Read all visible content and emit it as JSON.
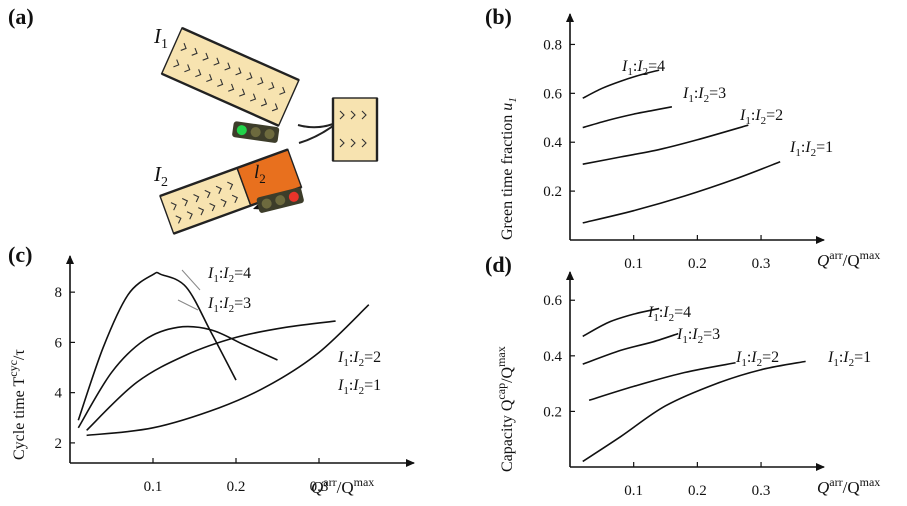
{
  "panels": {
    "a": {
      "label": "(a)",
      "road1": "I",
      "road1_sub": "1",
      "road2": "I",
      "road2_sub": "2",
      "queue": "l",
      "queue_sub": "2"
    },
    "b": {
      "label": "(b)"
    },
    "c": {
      "label": "(c)"
    },
    "d": {
      "label": "(d)"
    }
  },
  "colors": {
    "road": "#f7e3b0",
    "queue": "#e8701e",
    "signal_body": "#3d3d2a",
    "green": "#22d44a",
    "red": "#e8342a",
    "dark_lamp": "#6d6a3e"
  },
  "chart_data": [
    {
      "id": "b",
      "type": "line",
      "ylabel": "Green time fraction u",
      "ylabel_sub": "1",
      "xlabel": "Q^arr/Q^max",
      "xticks": [
        "0.1",
        "0.2",
        "0.3"
      ],
      "yticks": [
        "0.2",
        "0.4",
        "0.6",
        "0.8"
      ],
      "series": [
        {
          "name": "I1:I2=4",
          "x": [
            0.02,
            0.05,
            0.08,
            0.11,
            0.14
          ],
          "y": [
            0.58,
            0.62,
            0.65,
            0.675,
            0.695
          ]
        },
        {
          "name": "I1:I2=3",
          "x": [
            0.02,
            0.06,
            0.1,
            0.13,
            0.16
          ],
          "y": [
            0.46,
            0.49,
            0.515,
            0.53,
            0.545
          ]
        },
        {
          "name": "I1:I2=2",
          "x": [
            0.02,
            0.08,
            0.14,
            0.2,
            0.28
          ],
          "y": [
            0.31,
            0.34,
            0.37,
            0.41,
            0.47
          ]
        },
        {
          "name": "I1:I2=1",
          "x": [
            0.02,
            0.1,
            0.18,
            0.26,
            0.33
          ],
          "y": [
            0.07,
            0.12,
            0.18,
            0.25,
            0.32
          ]
        }
      ],
      "legend_labels": [
        "I1:I2=4",
        "I1:I2=3",
        "I1:I2=2",
        "I1:I2=1"
      ]
    },
    {
      "id": "c",
      "type": "line",
      "ylabel": "Cycle time T^cyc/τ",
      "xlabel": "Q^arr/Q^max",
      "xticks": [
        "0.1",
        "0.2",
        "0.3"
      ],
      "yticks": [
        "2",
        "4",
        "6",
        "8"
      ],
      "series": [
        {
          "name": "I1:I2=4",
          "x": [
            0.01,
            0.04,
            0.07,
            0.1,
            0.11,
            0.14,
            0.17,
            0.2
          ],
          "y": [
            2.9,
            5.8,
            7.9,
            8.7,
            8.7,
            8.2,
            6.4,
            4.5
          ]
        },
        {
          "name": "I1:I2=3",
          "x": [
            0.01,
            0.05,
            0.09,
            0.13,
            0.17,
            0.21,
            0.25
          ],
          "y": [
            2.6,
            4.8,
            6.1,
            6.6,
            6.5,
            5.9,
            5.3
          ]
        },
        {
          "name": "I1:I2=2",
          "x": [
            0.02,
            0.08,
            0.14,
            0.2,
            0.26,
            0.32
          ],
          "y": [
            2.5,
            4.4,
            5.5,
            6.2,
            6.6,
            6.85
          ]
        },
        {
          "name": "I1:I2=1",
          "x": [
            0.02,
            0.1,
            0.18,
            0.24,
            0.3,
            0.36
          ],
          "y": [
            2.3,
            2.6,
            3.4,
            4.3,
            5.6,
            7.5
          ]
        }
      ],
      "legend_labels": [
        "I1:I2=4",
        "I1:I2=3",
        "I1:I2=2",
        "I1:I2=1"
      ]
    },
    {
      "id": "d",
      "type": "line",
      "ylabel": "Capacity Q^cap/Q^max",
      "xlabel": "Q^arr/Q^max",
      "xticks": [
        "0.1",
        "0.2",
        "0.3"
      ],
      "yticks": [
        "0.2",
        "0.4",
        "0.6"
      ],
      "series": [
        {
          "name": "I1:I2=4",
          "x": [
            0.02,
            0.06,
            0.1,
            0.14
          ],
          "y": [
            0.47,
            0.52,
            0.55,
            0.57
          ]
        },
        {
          "name": "I1:I2=3",
          "x": [
            0.02,
            0.08,
            0.13,
            0.17
          ],
          "y": [
            0.37,
            0.42,
            0.45,
            0.48
          ]
        },
        {
          "name": "I1:I2=2",
          "x": [
            0.03,
            0.1,
            0.18,
            0.26
          ],
          "y": [
            0.24,
            0.29,
            0.34,
            0.375
          ]
        },
        {
          "name": "I1:I2=1",
          "x": [
            0.02,
            0.08,
            0.15,
            0.23,
            0.3,
            0.37
          ],
          "y": [
            0.02,
            0.11,
            0.22,
            0.3,
            0.35,
            0.38
          ]
        }
      ],
      "legend_labels": [
        "I1:I2=4",
        "I1:I2=3",
        "I1:I2=2",
        "I1:I2=1"
      ]
    }
  ]
}
